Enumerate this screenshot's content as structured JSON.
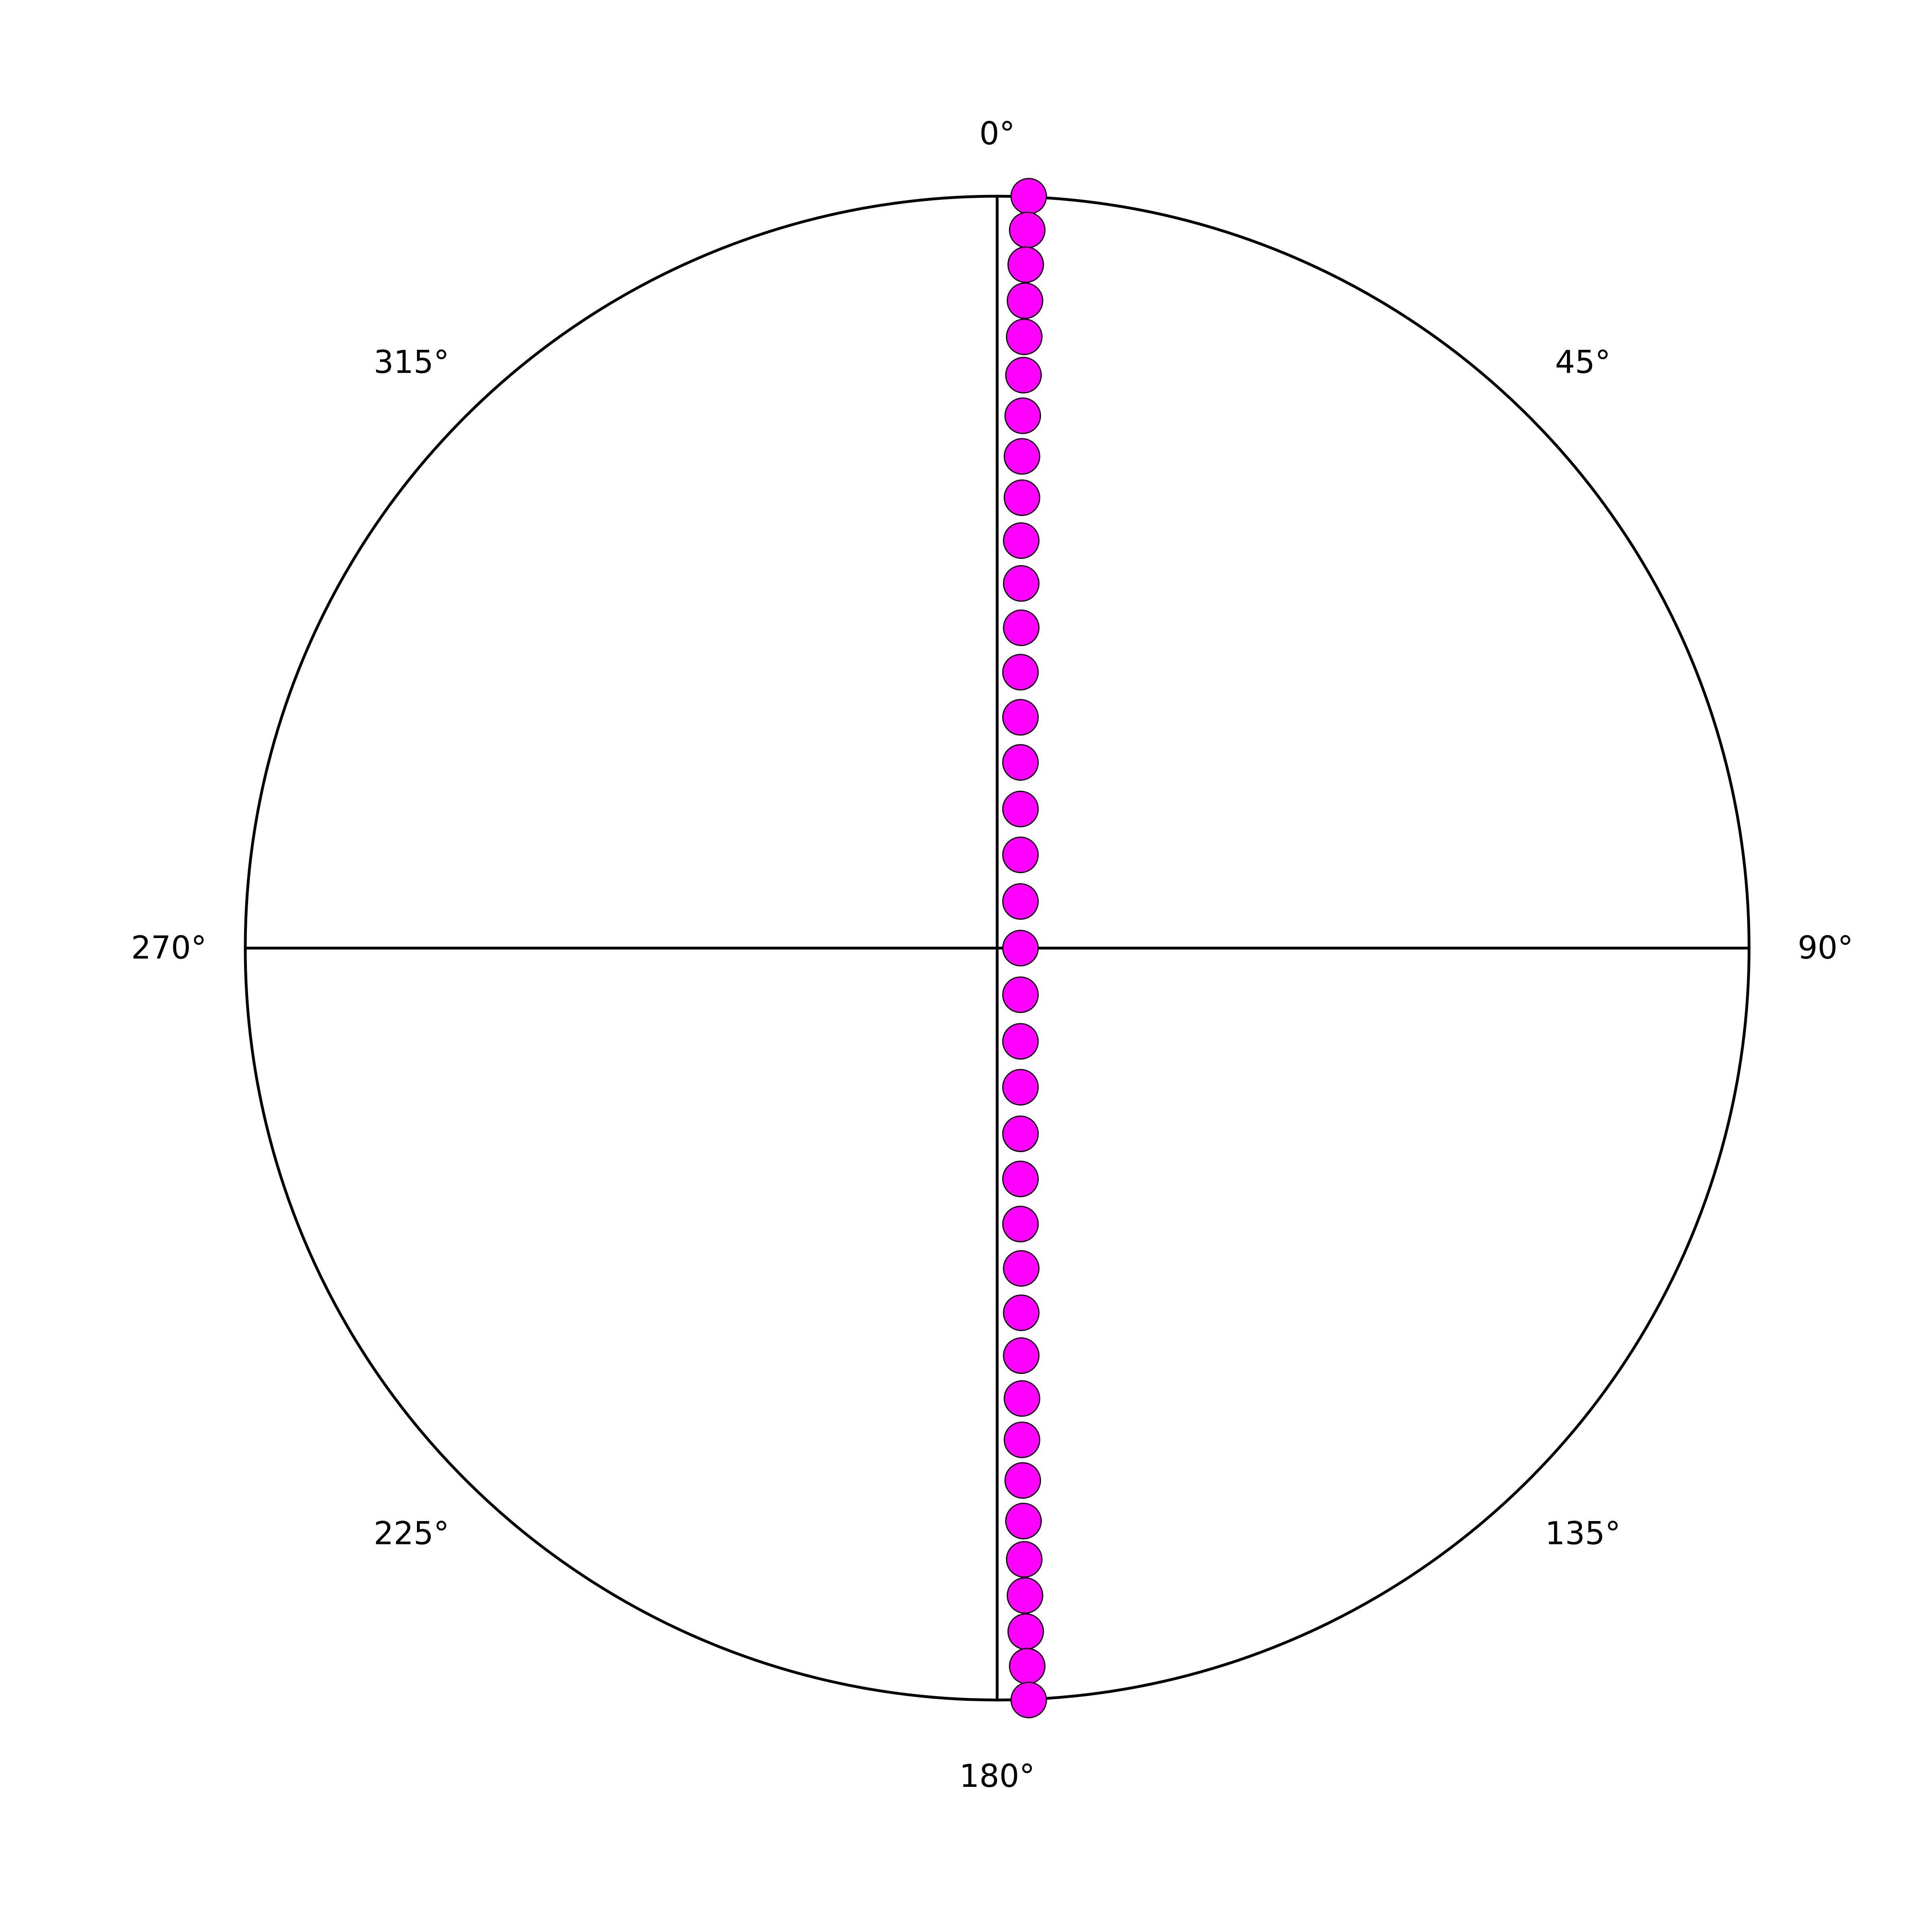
{
  "chart_data": {
    "type": "scatter",
    "projection": "stereonet",
    "title": "",
    "angle_labels": [
      {
        "text": "0°",
        "azimuth": 0
      },
      {
        "text": "45°",
        "azimuth": 45
      },
      {
        "text": "90°",
        "azimuth": 90
      },
      {
        "text": "135°",
        "azimuth": 135
      },
      {
        "text": "180°",
        "azimuth": 180
      },
      {
        "text": "225°",
        "azimuth": 225
      },
      {
        "text": "270°",
        "azimuth": 270
      },
      {
        "text": "315°",
        "azimuth": 315
      }
    ],
    "grid": false,
    "crosshair": true,
    "style": {
      "point_fill": "#ff00ff",
      "point_edge": "#000000",
      "line_color": "#000000",
      "background": "#ffffff"
    },
    "points_normalized": [
      {
        "x": 0.042,
        "y": 1.0
      },
      {
        "x": 0.04,
        "y": 0.955
      },
      {
        "x": 0.038,
        "y": 0.909
      },
      {
        "x": 0.037,
        "y": 0.861
      },
      {
        "x": 0.036,
        "y": 0.813
      },
      {
        "x": 0.035,
        "y": 0.762
      },
      {
        "x": 0.034,
        "y": 0.708
      },
      {
        "x": 0.033,
        "y": 0.654
      },
      {
        "x": 0.033,
        "y": 0.599
      },
      {
        "x": 0.032,
        "y": 0.542
      },
      {
        "x": 0.032,
        "y": 0.485
      },
      {
        "x": 0.032,
        "y": 0.426
      },
      {
        "x": 0.031,
        "y": 0.367
      },
      {
        "x": 0.031,
        "y": 0.307
      },
      {
        "x": 0.031,
        "y": 0.247
      },
      {
        "x": 0.031,
        "y": 0.185
      },
      {
        "x": 0.031,
        "y": 0.124
      },
      {
        "x": 0.031,
        "y": 0.062
      },
      {
        "x": 0.031,
        "y": 0.0
      },
      {
        "x": 0.031,
        "y": -0.062
      },
      {
        "x": 0.031,
        "y": -0.124
      },
      {
        "x": 0.031,
        "y": -0.185
      },
      {
        "x": 0.031,
        "y": -0.247
      },
      {
        "x": 0.031,
        "y": -0.307
      },
      {
        "x": 0.031,
        "y": -0.367
      },
      {
        "x": 0.032,
        "y": -0.426
      },
      {
        "x": 0.032,
        "y": -0.485
      },
      {
        "x": 0.032,
        "y": -0.542
      },
      {
        "x": 0.033,
        "y": -0.599
      },
      {
        "x": 0.033,
        "y": -0.654
      },
      {
        "x": 0.034,
        "y": -0.708
      },
      {
        "x": 0.035,
        "y": -0.762
      },
      {
        "x": 0.036,
        "y": -0.813
      },
      {
        "x": 0.037,
        "y": -0.861
      },
      {
        "x": 0.038,
        "y": -0.909
      },
      {
        "x": 0.04,
        "y": -0.955
      },
      {
        "x": 0.042,
        "y": -1.0
      }
    ]
  }
}
